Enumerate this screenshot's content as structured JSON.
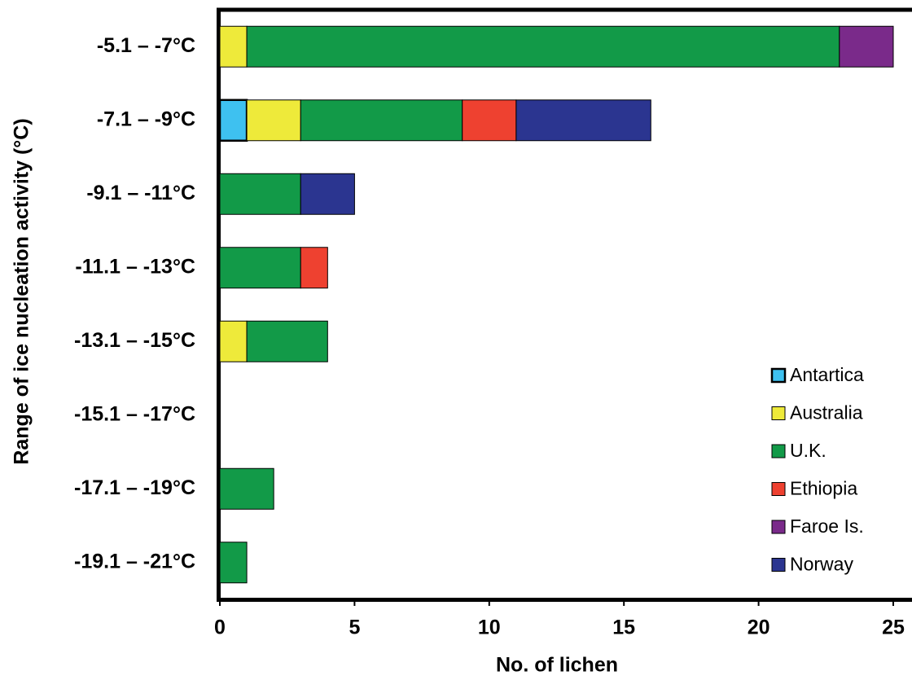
{
  "chart_data": {
    "type": "stacked-barh",
    "x_label": "No. of lichen",
    "y_label": "Range of ice nucleation activity (°C)",
    "categories": [
      "-5.1 – -7°C",
      "-7.1 – -9°C",
      "-9.1 – -11°C",
      "-11.1 – -13°C",
      "-13.1 – -15°C",
      "-15.1 – -17°C",
      "-17.1 – -19°C",
      "-19.1 – -21°C"
    ],
    "series": [
      {
        "name": "Antartica",
        "color": "#3ec1f0",
        "values": [
          0,
          1,
          0,
          0,
          0,
          0,
          0,
          0
        ]
      },
      {
        "name": "Australia",
        "color": "#eeea3a",
        "values": [
          1,
          2,
          0,
          0,
          1,
          0,
          0,
          0
        ]
      },
      {
        "name": "U.K.",
        "color": "#129a48",
        "values": [
          22,
          6,
          3,
          3,
          3,
          0,
          2,
          1
        ]
      },
      {
        "name": "Ethiopia",
        "color": "#ee4130",
        "values": [
          0,
          2,
          0,
          1,
          0,
          0,
          0,
          0
        ]
      },
      {
        "name": "Faroe Is.",
        "color": "#7a2a8a",
        "values": [
          2,
          0,
          0,
          0,
          0,
          0,
          0,
          0
        ]
      },
      {
        "name": "Norway",
        "color": "#2b3590",
        "values": [
          0,
          5,
          2,
          0,
          0,
          0,
          0,
          0
        ]
      }
    ],
    "xlim": [
      0,
      25
    ],
    "xticks": [
      0,
      5,
      10,
      15,
      20,
      25
    ],
    "legend": "lower-right",
    "grid": false
  }
}
